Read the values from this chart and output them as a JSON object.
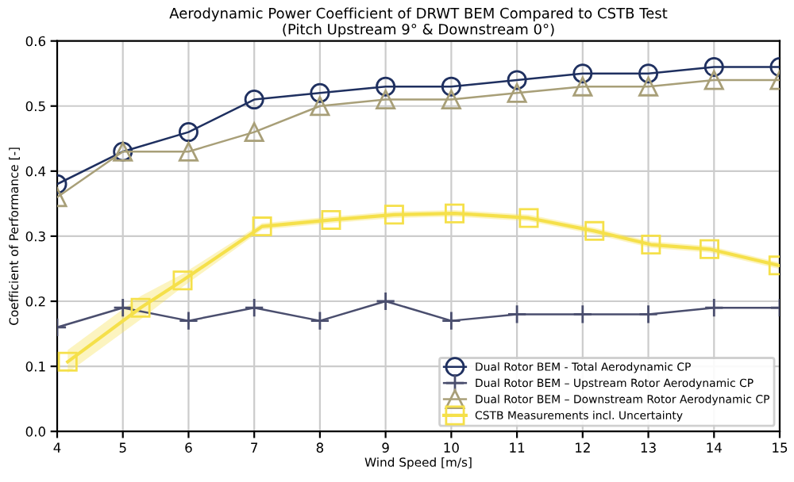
{
  "chart_data": {
    "type": "line",
    "title": "Aerodynamic Power Coefficient of DRWT BEM Compared to CSTB Test\n(Pitch Upstream 9° & Downstream 0°)",
    "xlabel": "Wind Speed [m/s]",
    "ylabel": "Coefficient of Performance [-]",
    "x": [
      4,
      5,
      6,
      7,
      8,
      9,
      10,
      11,
      12,
      13,
      14,
      15
    ],
    "series": [
      {
        "name": "Dual Rotor BEM - Total Aerodynamic CP",
        "color": "#1f3060",
        "marker": "circle",
        "values": [
          0.38,
          0.43,
          0.46,
          0.51,
          0.52,
          0.53,
          0.53,
          0.54,
          0.55,
          0.55,
          0.56,
          0.56
        ]
      },
      {
        "name": "Dual Rotor BEM – Upstream Rotor Aerodynamic CP",
        "color": "#4a4e6e",
        "marker": "cross",
        "values": [
          0.16,
          0.19,
          0.17,
          0.19,
          0.17,
          0.2,
          0.17,
          0.18,
          0.18,
          0.18,
          0.19,
          0.19
        ]
      },
      {
        "name": "Dual Rotor BEM – Downstream Rotor Aerodynamic CP",
        "color": "#a89f78",
        "marker": "triangle",
        "values": [
          0.36,
          0.43,
          0.43,
          0.46,
          0.5,
          0.51,
          0.51,
          0.52,
          0.53,
          0.53,
          0.54,
          0.54
        ]
      },
      {
        "name": "CSTB Measurements incl. Uncertainty",
        "color": "#f5e04a",
        "marker": "square",
        "x": [
          4.16,
          5.27,
          5.91,
          7.12,
          8.17,
          9.13,
          10.05,
          11.18,
          12.18,
          13.04,
          13.93,
          14.98
        ],
        "values": [
          0.107,
          0.19,
          0.232,
          0.315,
          0.325,
          0.333,
          0.335,
          0.328,
          0.308,
          0.287,
          0.28,
          0.255
        ],
        "lower": [
          0.09,
          0.172,
          0.222,
          0.31,
          0.32,
          0.328,
          0.33,
          0.323,
          0.303,
          0.282,
          0.275,
          0.25
        ],
        "upper": [
          0.125,
          0.208,
          0.242,
          0.32,
          0.33,
          0.338,
          0.34,
          0.333,
          0.313,
          0.292,
          0.285,
          0.26
        ]
      }
    ],
    "xlim": [
      4,
      15
    ],
    "xticks": [
      4,
      5,
      6,
      7,
      8,
      9,
      10,
      11,
      12,
      13,
      14,
      15
    ],
    "ylim": [
      0.0,
      0.6
    ],
    "yticks": [
      {
        "value": 0.0,
        "label": "0.0"
      },
      0.1,
      0.2,
      0.3,
      0.4,
      0.5,
      0.6
    ],
    "grid": true,
    "legend": "bottom right"
  }
}
